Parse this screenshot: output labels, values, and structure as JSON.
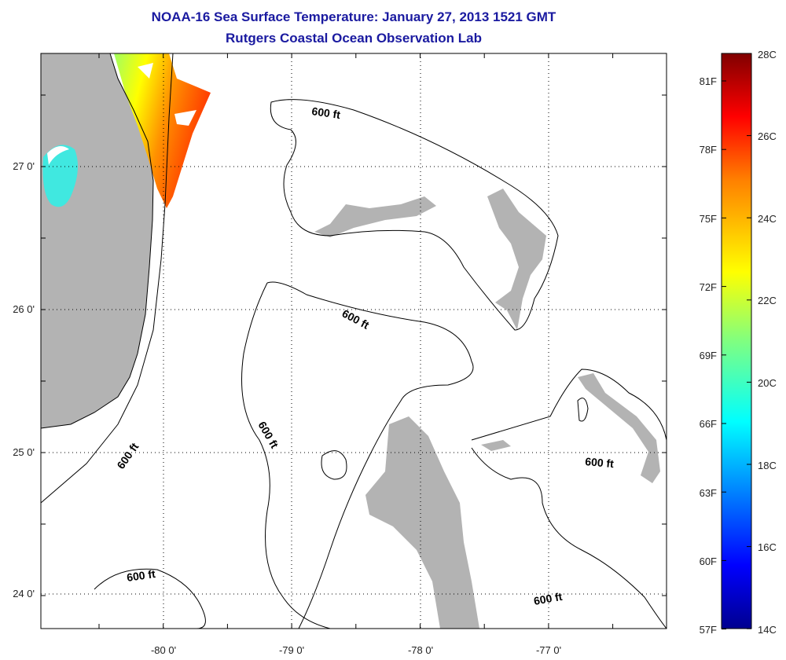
{
  "title_line1": "NOAA-16 Sea Surface Temperature:  January 27, 2013 1521 GMT",
  "title_line2": "Rutgers Coastal Ocean Observation Lab",
  "x_ticks": [
    "-80 0'",
    "-79 0'",
    "-78 0'",
    "-77 0'"
  ],
  "y_ticks": [
    "27 0'",
    "26 0'",
    "25 0'",
    "24 0'"
  ],
  "contour_label": "600 ft",
  "colorbar": {
    "celsius_labels": [
      "28C",
      "26C",
      "24C",
      "22C",
      "20C",
      "18C",
      "16C",
      "14C"
    ],
    "fahrenheit_labels": [
      "81F",
      "78F",
      "75F",
      "72F",
      "69F",
      "66F",
      "63F",
      "60F",
      "57F"
    ],
    "colors": [
      "#00008f",
      "#0000ff",
      "#0080ff",
      "#00ffff",
      "#80ff80",
      "#ffff00",
      "#ff8000",
      "#ff0000",
      "#800000"
    ]
  },
  "colors": {
    "land": "#b3b3b3",
    "title": "#1a1aa0"
  }
}
